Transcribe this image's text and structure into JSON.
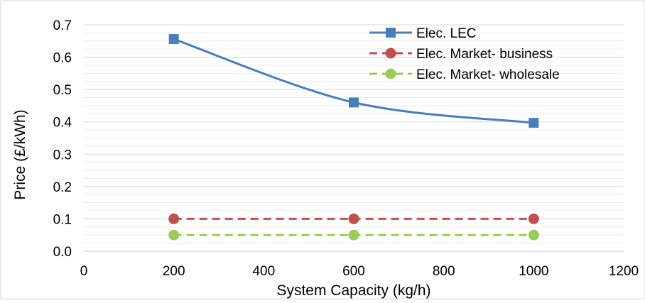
{
  "chart_data": {
    "type": "line",
    "title": "",
    "xlabel": "System Capacity (kg/h)",
    "ylabel": "Price (£/kWh)",
    "xlim": [
      0,
      1200
    ],
    "ylim": [
      0,
      0.7
    ],
    "x_ticks": [
      0,
      200,
      400,
      600,
      800,
      1000,
      1200
    ],
    "y_ticks": [
      "0.0",
      "0.1",
      "0.2",
      "0.3",
      "0.4",
      "0.5",
      "0.6",
      "0.7"
    ],
    "grid": true,
    "legend_position": "top-right",
    "series": [
      {
        "name": "Elec. LEC",
        "color": "#4a7ebb",
        "marker": "square",
        "line_style": "solid",
        "smooth": true,
        "x": [
          200,
          600,
          1000
        ],
        "values": [
          0.656,
          0.46,
          0.397
        ]
      },
      {
        "name": "Elec. Market- business",
        "color": "#c0504d",
        "marker": "circle",
        "line_style": "dashed",
        "smooth": false,
        "x": [
          200,
          600,
          1000
        ],
        "values": [
          0.1,
          0.1,
          0.1
        ]
      },
      {
        "name": "Elec. Market- wholesale",
        "color": "#9bcb5b",
        "marker": "circle",
        "line_style": "dashed",
        "smooth": false,
        "x": [
          200,
          600,
          1000
        ],
        "values": [
          0.05,
          0.05,
          0.05
        ]
      }
    ]
  }
}
